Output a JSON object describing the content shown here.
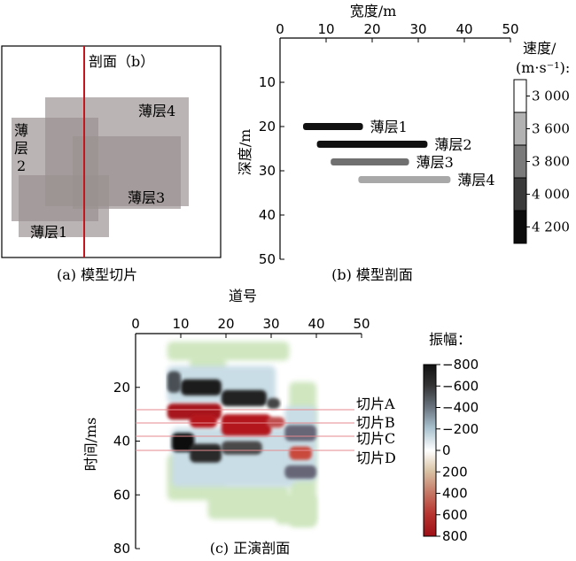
{
  "panel_a": {
    "caption": "(a) 模型切片",
    "section_label": "剖面（b）",
    "layers": [
      {
        "name": "薄层1"
      },
      {
        "name": "薄层2"
      },
      {
        "name": "薄层3"
      },
      {
        "name": "薄层4"
      }
    ],
    "layer2_lines": [
      "薄",
      "层",
      "2"
    ]
  },
  "panel_b": {
    "caption": "(b) 模型剖面",
    "xlabel": "宽度/m",
    "ylabel": "深度/m",
    "x_ticks": [
      "0",
      "10",
      "20",
      "30",
      "40",
      "50"
    ],
    "y_ticks": [
      "10",
      "20",
      "30",
      "40",
      "50"
    ],
    "legend_title_1": "速度/",
    "legend_title_2": "(m·s⁻¹):",
    "legend_values": [
      "3 000",
      "3 600",
      "3 800",
      "4 000",
      "4 200"
    ],
    "legend_colors": [
      "#ffffff",
      "#b2b2b2",
      "#7a7a7a",
      "#3a3a3a",
      "#0c0c0c"
    ]
  },
  "panel_c": {
    "caption": "(c) 正演剖面",
    "xlabel": "道号",
    "ylabel": "时间/ms",
    "x_ticks": [
      "0",
      "10",
      "20",
      "30",
      "40",
      "50"
    ],
    "y_ticks": [
      "20",
      "40",
      "60",
      "80"
    ],
    "colorbar_title": "振幅：",
    "colorbar_ticks": [
      "−800",
      "−600",
      "−400",
      "−200",
      "0",
      "200",
      "400",
      "600",
      "800"
    ],
    "slices": [
      "切片A",
      "切片B",
      "切片C",
      "切片D"
    ]
  },
  "chart_data": {
    "type": "bar",
    "title": "",
    "xlabel": "宽度/m",
    "ylabel": "深度/m",
    "xlim": [
      0,
      50
    ],
    "ylim": [
      0,
      50
    ],
    "series": [
      {
        "name": "薄层1",
        "x_start": 5,
        "x_end": 18,
        "depth": 20,
        "velocity": 4200
      },
      {
        "name": "薄层2",
        "x_start": 8,
        "x_end": 32,
        "depth": 24,
        "velocity": 4200
      },
      {
        "name": "薄层3",
        "x_start": 11,
        "x_end": 28,
        "depth": 28,
        "velocity": 3800
      },
      {
        "name": "薄层4",
        "x_start": 17,
        "x_end": 37,
        "depth": 32,
        "velocity": 3600
      }
    ]
  }
}
